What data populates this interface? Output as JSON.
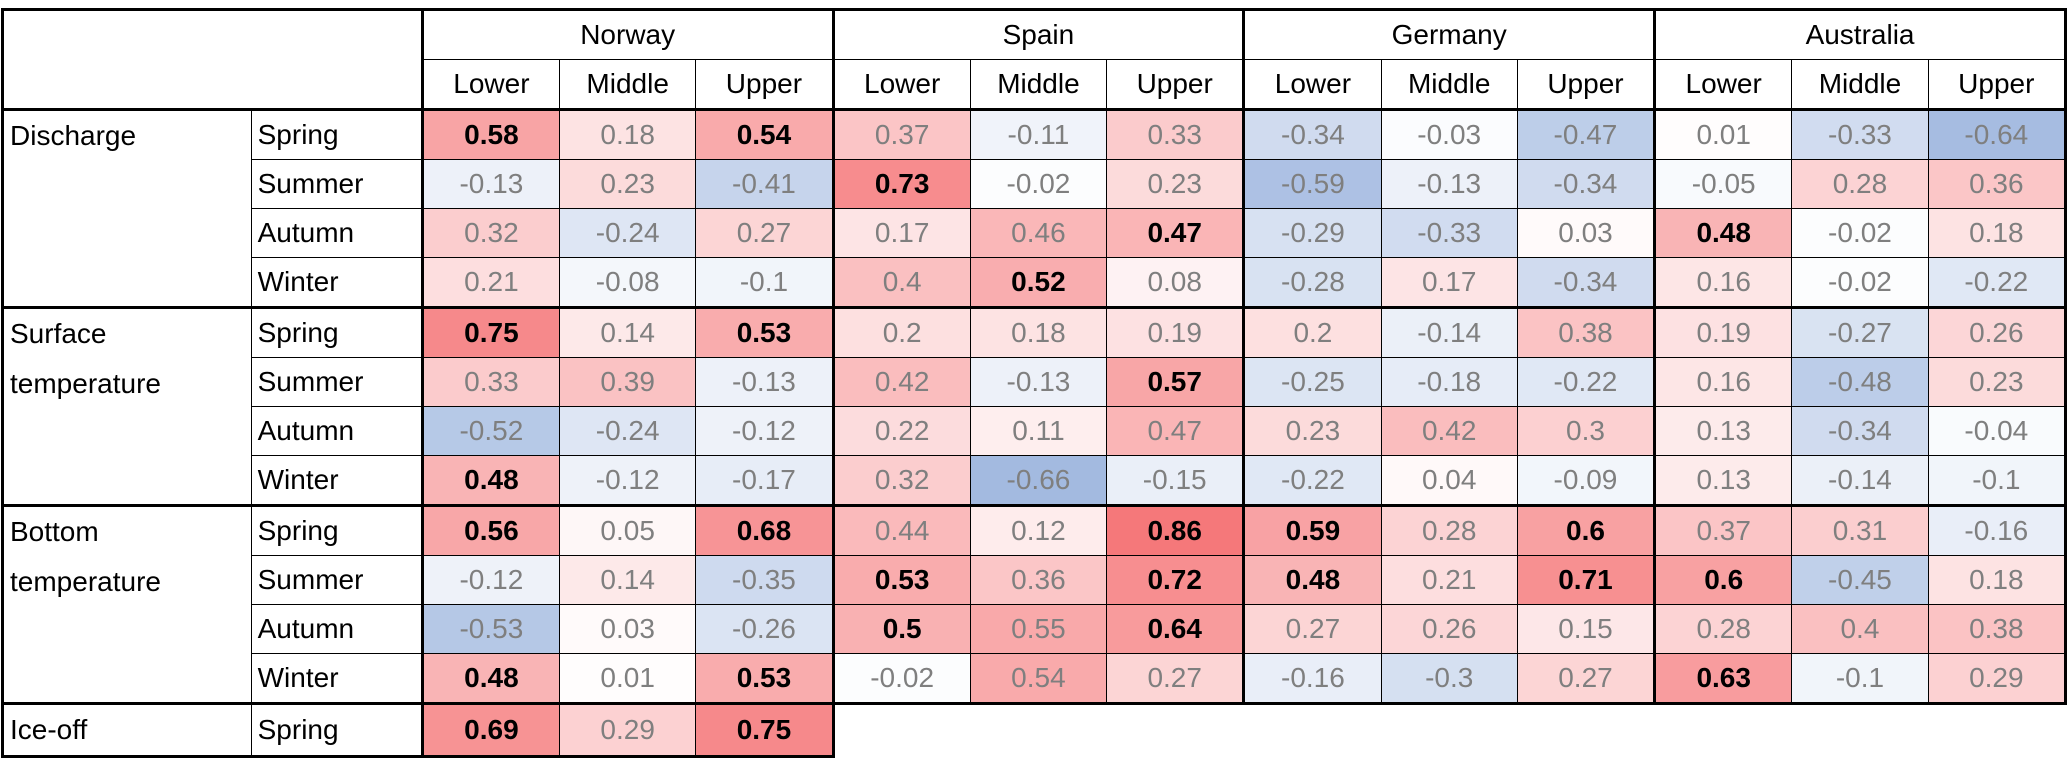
{
  "table": {
    "countries": [
      {
        "name": "Norway",
        "levels": [
          "Lower",
          "Middle",
          "Upper"
        ]
      },
      {
        "name": "Spain",
        "levels": [
          "Lower",
          "Middle",
          "Upper"
        ]
      },
      {
        "name": "Germany",
        "levels": [
          "Lower",
          "Middle",
          "Upper"
        ]
      },
      {
        "name": "Australia",
        "levels": [
          "Lower",
          "Middle",
          "Upper"
        ]
      }
    ],
    "groups": [
      {
        "variable": "Discharge",
        "rows": [
          {
            "season": "Spring",
            "values": [
              0.58,
              0.18,
              0.54,
              0.37,
              -0.11,
              0.33,
              -0.34,
              -0.03,
              -0.47,
              0.01,
              -0.33,
              -0.64
            ],
            "bold": [
              true,
              false,
              true,
              false,
              false,
              false,
              false,
              false,
              false,
              false,
              false,
              false
            ]
          },
          {
            "season": "Summer",
            "values": [
              -0.13,
              0.23,
              -0.41,
              0.73,
              -0.02,
              0.23,
              -0.59,
              -0.13,
              -0.34,
              -0.05,
              0.28,
              0.36
            ],
            "bold": [
              false,
              false,
              false,
              true,
              false,
              false,
              false,
              false,
              false,
              false,
              false,
              false
            ]
          },
          {
            "season": "Autumn",
            "values": [
              0.32,
              -0.24,
              0.27,
              0.17,
              0.46,
              0.47,
              -0.29,
              -0.33,
              0.03,
              0.48,
              -0.02,
              0.18
            ],
            "bold": [
              false,
              false,
              false,
              false,
              false,
              true,
              false,
              false,
              false,
              true,
              false,
              false
            ]
          },
          {
            "season": "Winter",
            "values": [
              0.21,
              -0.08,
              -0.1,
              0.4,
              0.52,
              0.08,
              -0.28,
              0.17,
              -0.34,
              0.16,
              -0.02,
              -0.22
            ],
            "bold": [
              false,
              false,
              false,
              false,
              true,
              false,
              false,
              false,
              false,
              false,
              false,
              false
            ]
          }
        ]
      },
      {
        "variable": "Surface temperature",
        "rows": [
          {
            "season": "Spring",
            "values": [
              0.75,
              0.14,
              0.53,
              0.2,
              0.18,
              0.19,
              0.2,
              -0.14,
              0.38,
              0.19,
              -0.27,
              0.26
            ],
            "bold": [
              true,
              false,
              true,
              false,
              false,
              false,
              false,
              false,
              false,
              false,
              false,
              false
            ]
          },
          {
            "season": "Summer",
            "values": [
              0.33,
              0.39,
              -0.13,
              0.42,
              -0.13,
              0.57,
              -0.25,
              -0.18,
              -0.22,
              0.16,
              -0.48,
              0.23
            ],
            "bold": [
              false,
              false,
              false,
              false,
              false,
              true,
              false,
              false,
              false,
              false,
              false,
              false
            ]
          },
          {
            "season": "Autumn",
            "values": [
              -0.52,
              -0.24,
              -0.12,
              0.22,
              0.11,
              0.47,
              0.23,
              0.42,
              0.3,
              0.13,
              -0.34,
              -0.04
            ],
            "bold": [
              false,
              false,
              false,
              false,
              false,
              false,
              false,
              false,
              false,
              false,
              false,
              false
            ]
          },
          {
            "season": "Winter",
            "values": [
              0.48,
              -0.12,
              -0.17,
              0.32,
              -0.66,
              -0.15,
              -0.22,
              0.04,
              -0.09,
              0.13,
              -0.14,
              -0.1
            ],
            "bold": [
              true,
              false,
              false,
              false,
              false,
              false,
              false,
              false,
              false,
              false,
              false,
              false
            ]
          }
        ]
      },
      {
        "variable": "Bottom temperature",
        "rows": [
          {
            "season": "Spring",
            "values": [
              0.56,
              0.05,
              0.68,
              0.44,
              0.12,
              0.86,
              0.59,
              0.28,
              0.6,
              0.37,
              0.31,
              -0.16
            ],
            "bold": [
              true,
              false,
              true,
              false,
              false,
              true,
              true,
              false,
              true,
              false,
              false,
              false
            ]
          },
          {
            "season": "Summer",
            "values": [
              -0.12,
              0.14,
              -0.35,
              0.53,
              0.36,
              0.72,
              0.48,
              0.21,
              0.71,
              0.6,
              -0.45,
              0.18
            ],
            "bold": [
              false,
              false,
              false,
              true,
              false,
              true,
              true,
              false,
              true,
              true,
              false,
              false
            ]
          },
          {
            "season": "Autumn",
            "values": [
              -0.53,
              0.03,
              -0.26,
              0.5,
              0.55,
              0.64,
              0.27,
              0.26,
              0.15,
              0.28,
              0.4,
              0.38
            ],
            "bold": [
              false,
              false,
              false,
              true,
              false,
              true,
              false,
              false,
              false,
              false,
              false,
              false
            ]
          },
          {
            "season": "Winter",
            "values": [
              0.48,
              0.01,
              0.53,
              -0.02,
              0.54,
              0.27,
              -0.16,
              -0.3,
              0.27,
              0.63,
              -0.1,
              0.29
            ],
            "bold": [
              true,
              false,
              true,
              false,
              false,
              false,
              false,
              false,
              false,
              true,
              false,
              false
            ]
          }
        ]
      },
      {
        "variable": "Ice-off",
        "rows": [
          {
            "season": "Spring",
            "values": [
              0.69,
              0.29,
              0.75
            ],
            "bold": [
              true,
              false,
              true
            ]
          }
        ]
      }
    ]
  }
}
